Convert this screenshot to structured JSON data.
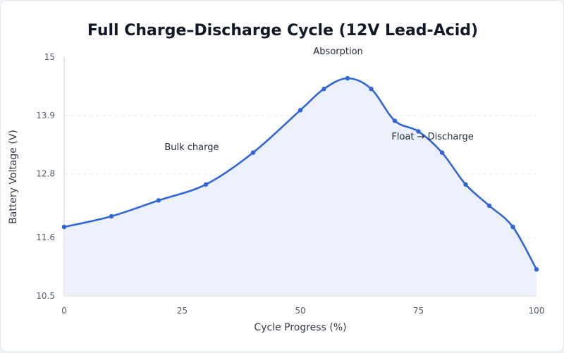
{
  "chart_data": {
    "type": "area",
    "title": "Full Charge–Discharge Cycle (12V Lead-Acid)",
    "xlabel": "Cycle Progress (%)",
    "ylabel": "Battery Voltage (V)",
    "xlim": [
      0,
      100
    ],
    "ylim": [
      10.5,
      15
    ],
    "x_ticks": [
      "0",
      "25",
      "50",
      "75",
      "100"
    ],
    "y_ticks": [
      "10.5",
      "11.6",
      "12.8",
      "13.9",
      "15"
    ],
    "grid": true,
    "line_color": "#2f66d6",
    "fill_color": "#e8edf9",
    "series": [
      {
        "x": [
          0,
          10,
          20,
          30,
          40,
          50,
          55,
          60,
          65,
          70,
          75,
          80,
          85,
          90,
          95,
          100
        ],
        "y": [
          11.8,
          12.0,
          12.3,
          12.6,
          13.2,
          14.0,
          14.4,
          14.6,
          14.4,
          13.8,
          13.6,
          13.2,
          12.6,
          12.2,
          11.8,
          11.0
        ]
      }
    ],
    "annotations": [
      {
        "text": "Absorption",
        "x": 58,
        "y": 15.05
      },
      {
        "text": "Bulk charge",
        "x": 27,
        "y": 13.25
      },
      {
        "text": "Float → Discharge",
        "x": 78,
        "y": 13.45
      }
    ]
  }
}
